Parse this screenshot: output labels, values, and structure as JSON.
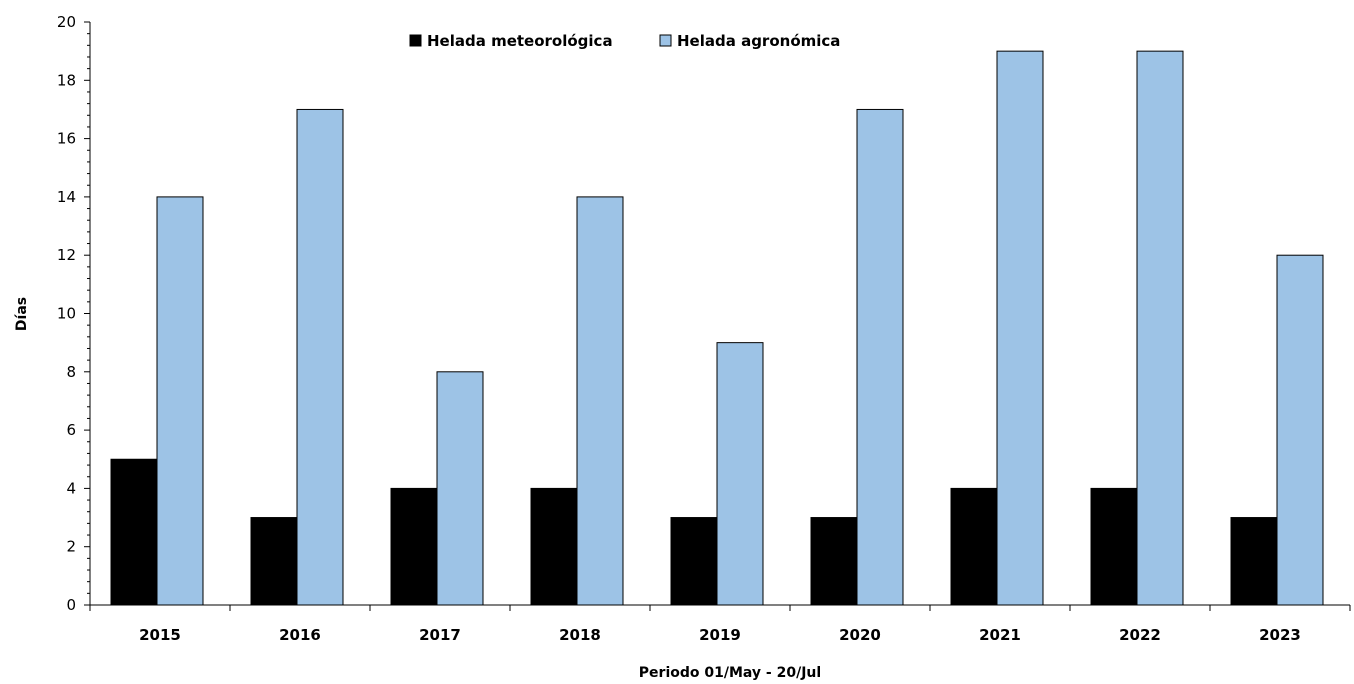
{
  "chart_data": {
    "type": "bar",
    "categories": [
      "2015",
      "2016",
      "2017",
      "2018",
      "2019",
      "2020",
      "2021",
      "2022",
      "2023"
    ],
    "series": [
      {
        "name": "Helada meteorológica",
        "values": [
          5,
          3,
          4,
          4,
          3,
          3,
          4,
          4,
          3
        ],
        "color": "#000000"
      },
      {
        "name": "Helada agronómica",
        "values": [
          14,
          17,
          8,
          14,
          9,
          17,
          19,
          19,
          12
        ],
        "color": "#9dc3e6"
      }
    ],
    "title": "",
    "xlabel": "Periodo 01/May - 20/Jul",
    "ylabel": "Días",
    "ylim": [
      0,
      20
    ],
    "yticks": [
      0,
      2,
      4,
      6,
      8,
      10,
      12,
      14,
      16,
      18,
      20
    ],
    "grid": false,
    "legend_position": "top-center"
  }
}
